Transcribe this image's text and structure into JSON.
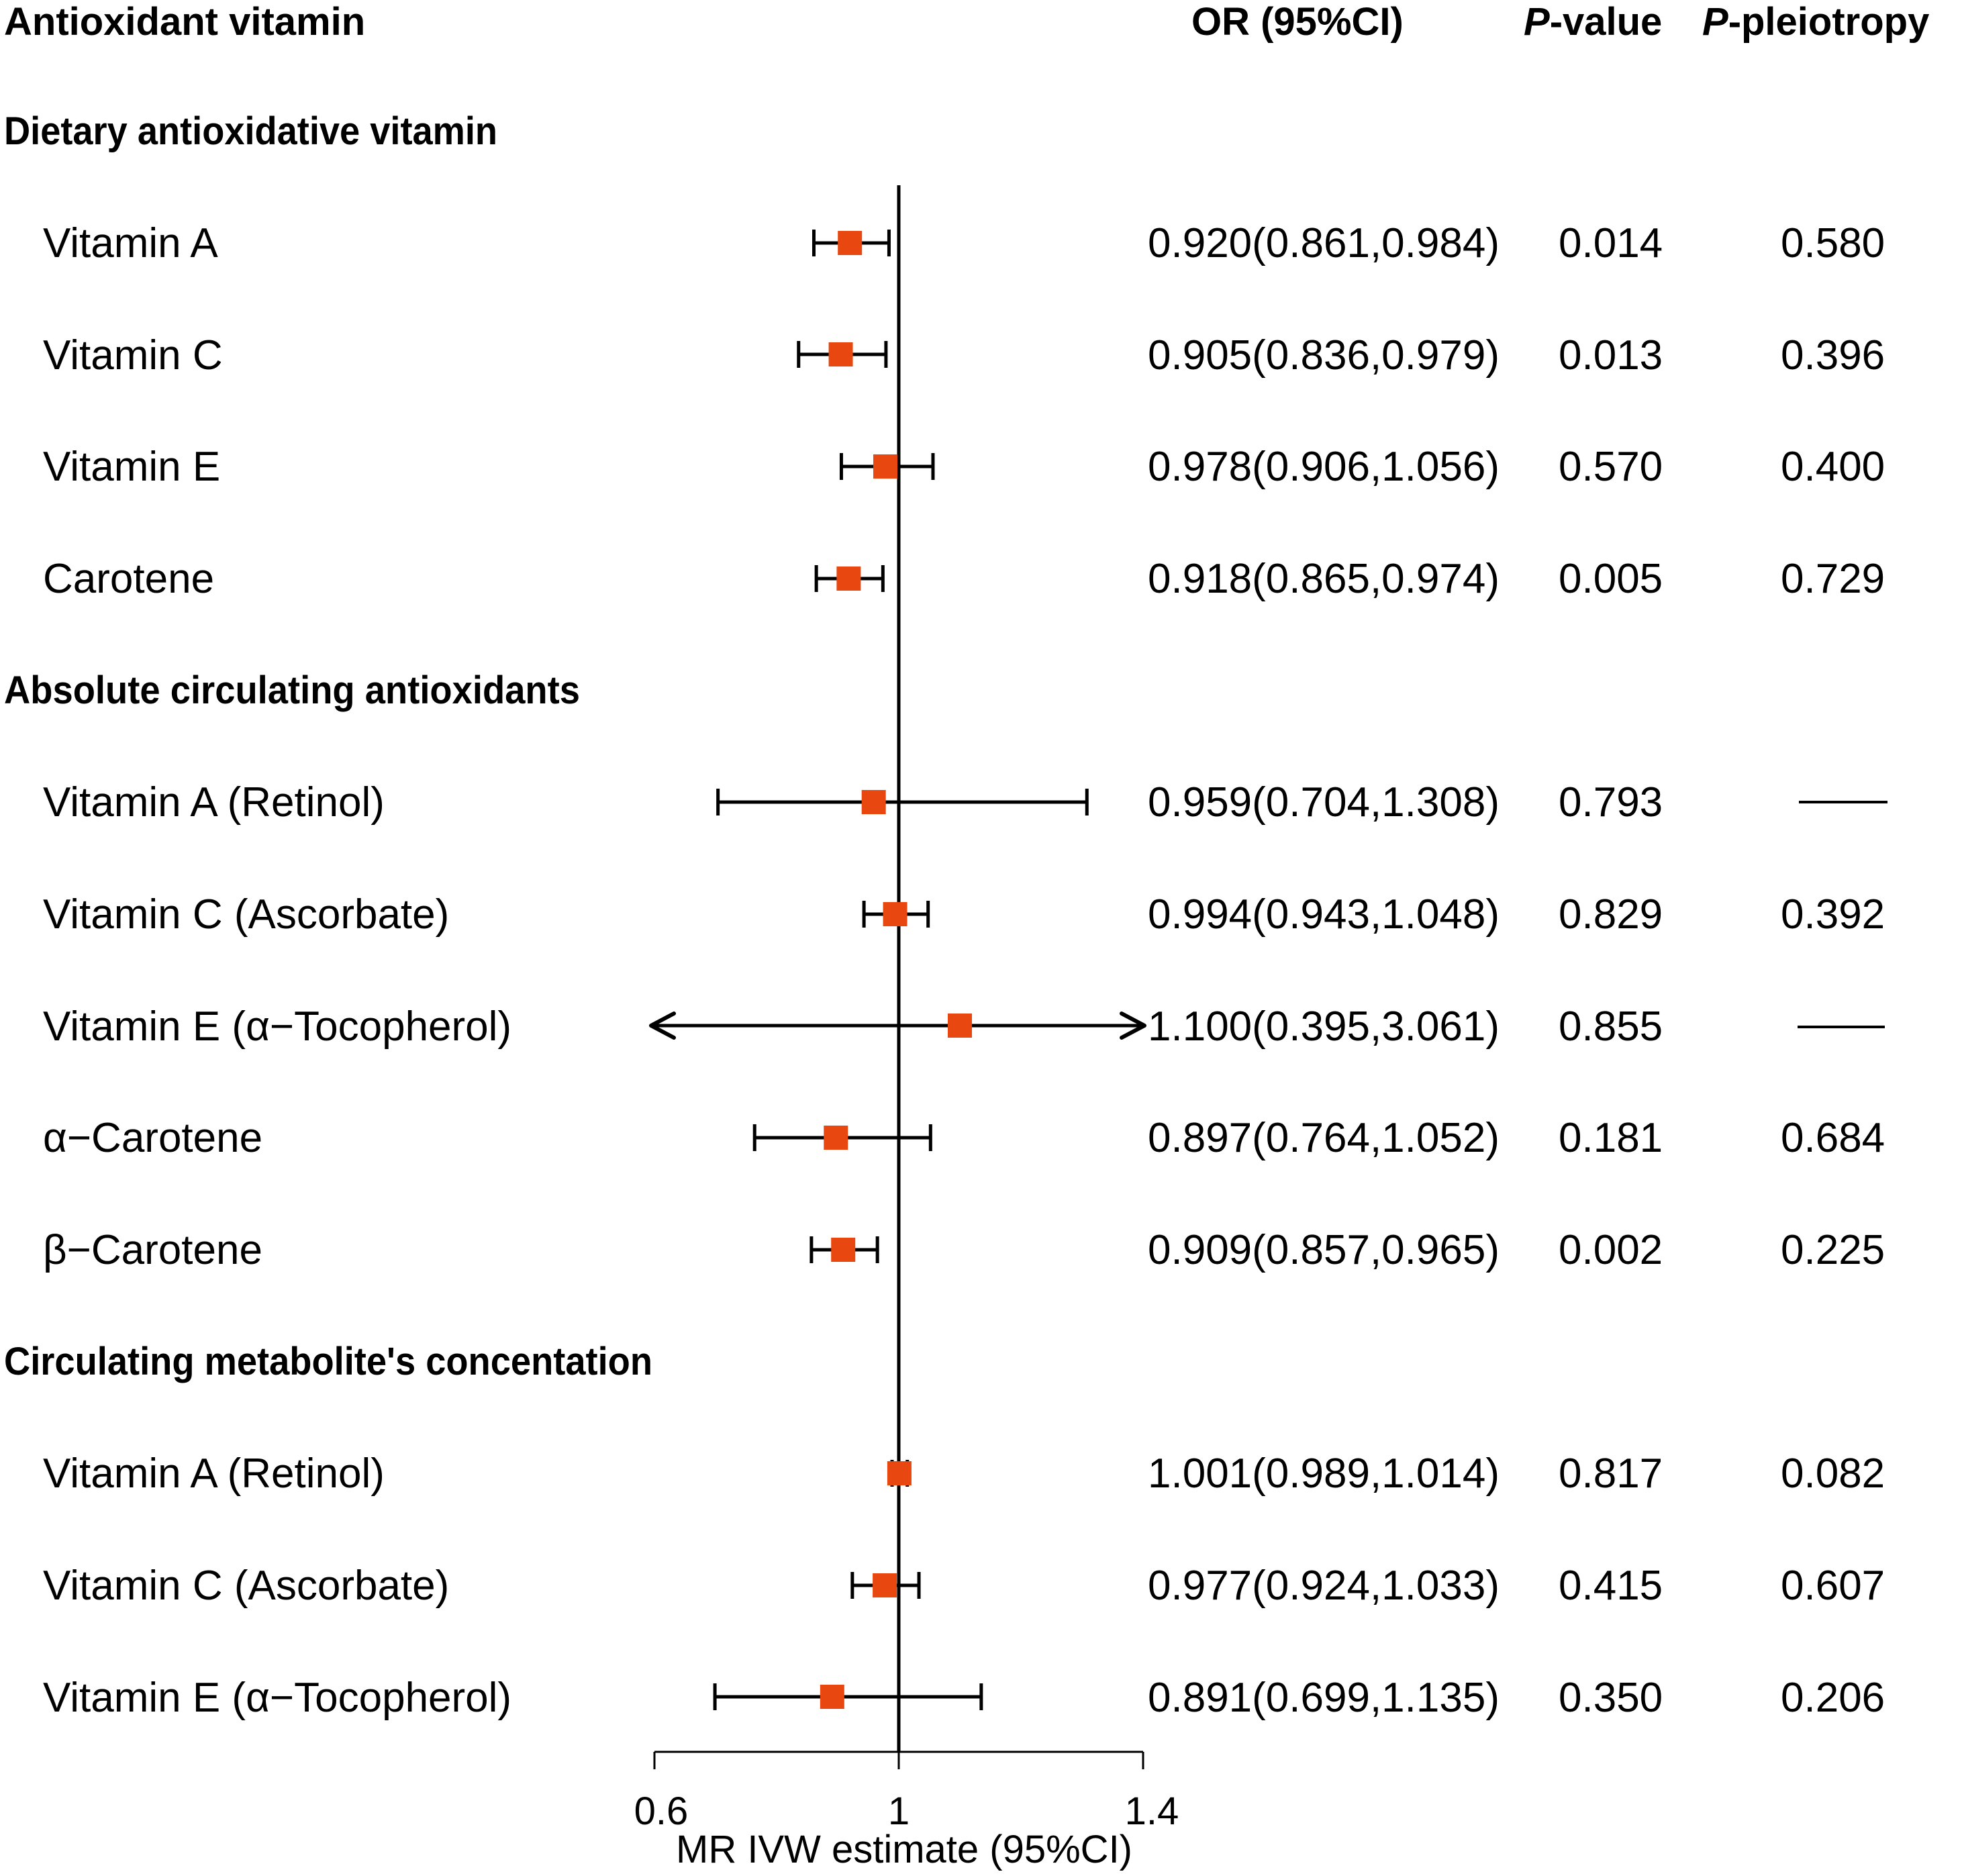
{
  "chart_data": {
    "type": "forest",
    "headers": {
      "label": "Antioxidant vitamin",
      "or": "OR (95%CI)",
      "pval_prefix": "P",
      "pval_suffix": "-value",
      "pple_prefix": "P",
      "pple_suffix": "-pleiotropy"
    },
    "groups": [
      {
        "title": "Dietary antioxidative vitamin",
        "rows": [
          {
            "label": "Vitamin A",
            "or": 0.92,
            "lo": 0.861,
            "hi": 0.984,
            "or_text": "0.920(0.861,0.984)",
            "p": "0.014",
            "pp": "0.580"
          },
          {
            "label": "Vitamin C",
            "or": 0.905,
            "lo": 0.836,
            "hi": 0.979,
            "or_text": "0.905(0.836,0.979)",
            "p": "0.013",
            "pp": "0.396"
          },
          {
            "label": "Vitamin E",
            "or": 0.978,
            "lo": 0.906,
            "hi": 1.056,
            "or_text": "0.978(0.906,1.056)",
            "p": "0.570",
            "pp": "0.400"
          },
          {
            "label": "Carotene",
            "or": 0.918,
            "lo": 0.865,
            "hi": 0.974,
            "or_text": "0.918(0.865,0.974)",
            "p": "0.005",
            "pp": "0.729"
          }
        ]
      },
      {
        "title": "Absolute circulating antioxidants",
        "rows": [
          {
            "label": "Vitamin A (Retinol)",
            "or": 0.959,
            "lo": 0.704,
            "hi": 1.308,
            "or_text": "0.959(0.704,1.308)",
            "p": "0.793",
            "pp": null
          },
          {
            "label": "Vitamin C (Ascorbate)",
            "or": 0.994,
            "lo": 0.943,
            "hi": 1.048,
            "or_text": "0.994(0.943,1.048)",
            "p": "0.829",
            "pp": "0.392"
          },
          {
            "label": "Vitamin E (α−Tocopherol)",
            "or": 1.1,
            "lo": 0.395,
            "hi": 3.061,
            "or_text": "1.100(0.395,3.061)",
            "p": "0.855",
            "pp": null
          },
          {
            "label": "α−Carotene",
            "or": 0.897,
            "lo": 0.764,
            "hi": 1.052,
            "or_text": "0.897(0.764,1.052)",
            "p": "0.181",
            "pp": "0.684"
          },
          {
            "label": "β−Carotene",
            "or": 0.909,
            "lo": 0.857,
            "hi": 0.965,
            "or_text": "0.909(0.857,0.965)",
            "p": "0.002",
            "pp": "0.225"
          }
        ]
      },
      {
        "title": "Circulating metabolite's concentation",
        "rows": [
          {
            "label": "Vitamin A (Retinol)",
            "or": 1.001,
            "lo": 0.989,
            "hi": 1.014,
            "or_text": "1.001(0.989,1.014)",
            "p": "0.817",
            "pp": "0.082"
          },
          {
            "label": "Vitamin C (Ascorbate)",
            "or": 0.977,
            "lo": 0.924,
            "hi": 1.033,
            "or_text": "0.977(0.924,1.033)",
            "p": "0.415",
            "pp": "0.607"
          },
          {
            "label": "Vitamin E (α−Tocopherol)",
            "or": 0.891,
            "lo": 0.699,
            "hi": 1.135,
            "or_text": "0.891(0.699,1.135)",
            "p": "0.350",
            "pp": "0.206"
          }
        ]
      }
    ],
    "xlim": [
      0.6,
      1.4
    ],
    "xticks": [
      0.6,
      1,
      1.4
    ],
    "xtick_labels": [
      "0.6",
      "1",
      "1.4"
    ],
    "reference_line": 1,
    "xlabel": "MR IVW estimate (95%CI)",
    "marker_color": "#E8470F"
  }
}
